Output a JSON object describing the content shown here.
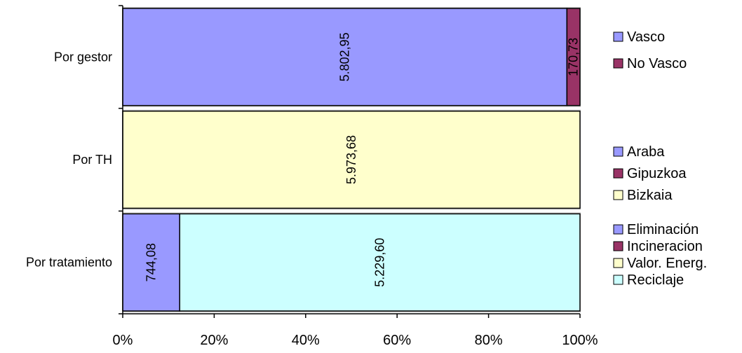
{
  "chart_data": {
    "type": "bar",
    "orientation": "horizontal",
    "stacked": "percent",
    "grid": false,
    "xlim": [
      0,
      100
    ],
    "x_ticks": [
      "0%",
      "20%",
      "40%",
      "60%",
      "80%",
      "100%"
    ],
    "categories": [
      "Por gestor",
      "Por TH",
      "Por tratamiento"
    ],
    "bars": [
      {
        "category": "Por gestor",
        "segments": [
          {
            "name": "Vasco",
            "value": 5802.95,
            "label": "5.802,95",
            "color": "#9999ff"
          },
          {
            "name": "No Vasco",
            "value": 170.73,
            "label": "170,73",
            "color": "#993366"
          }
        ]
      },
      {
        "category": "Por TH",
        "segments": [
          {
            "name": "Araba",
            "value": 0,
            "label": "",
            "color": "#9999ff"
          },
          {
            "name": "Gipuzkoa",
            "value": 0,
            "label": "",
            "color": "#993366"
          },
          {
            "name": "Bizkaia",
            "value": 5973.68,
            "label": "5.973,68",
            "color": "#ffffcc"
          }
        ]
      },
      {
        "category": "Por tratamiento",
        "segments": [
          {
            "name": "Eliminación",
            "value": 744.08,
            "label": "744,08",
            "color": "#9999ff"
          },
          {
            "name": "Incineracion",
            "value": 0,
            "label": "",
            "color": "#993366"
          },
          {
            "name": "Valor. Energ.",
            "value": 0,
            "label": "",
            "color": "#ffffcc"
          },
          {
            "name": "Reciclaje",
            "value": 5229.6,
            "label": "5.229,60",
            "color": "#ccffff"
          }
        ]
      }
    ],
    "legend_placement": "right",
    "legends": [
      {
        "for": "Por gestor",
        "items": [
          {
            "label": "Vasco",
            "color": "#9999ff"
          },
          {
            "label": "No Vasco",
            "color": "#993366"
          }
        ]
      },
      {
        "for": "Por TH",
        "items": [
          {
            "label": "Araba",
            "color": "#9999ff"
          },
          {
            "label": "Gipuzkoa",
            "color": "#993366"
          },
          {
            "label": "Bizkaia",
            "color": "#ffffcc"
          }
        ]
      },
      {
        "for": "Por tratamiento",
        "items": [
          {
            "label": "Eliminación",
            "color": "#9999ff"
          },
          {
            "label": "Incineracion",
            "color": "#993366"
          },
          {
            "label": "Valor. Energ.",
            "color": "#ffffcc"
          },
          {
            "label": "Reciclaje",
            "color": "#ccffff"
          }
        ]
      }
    ]
  }
}
